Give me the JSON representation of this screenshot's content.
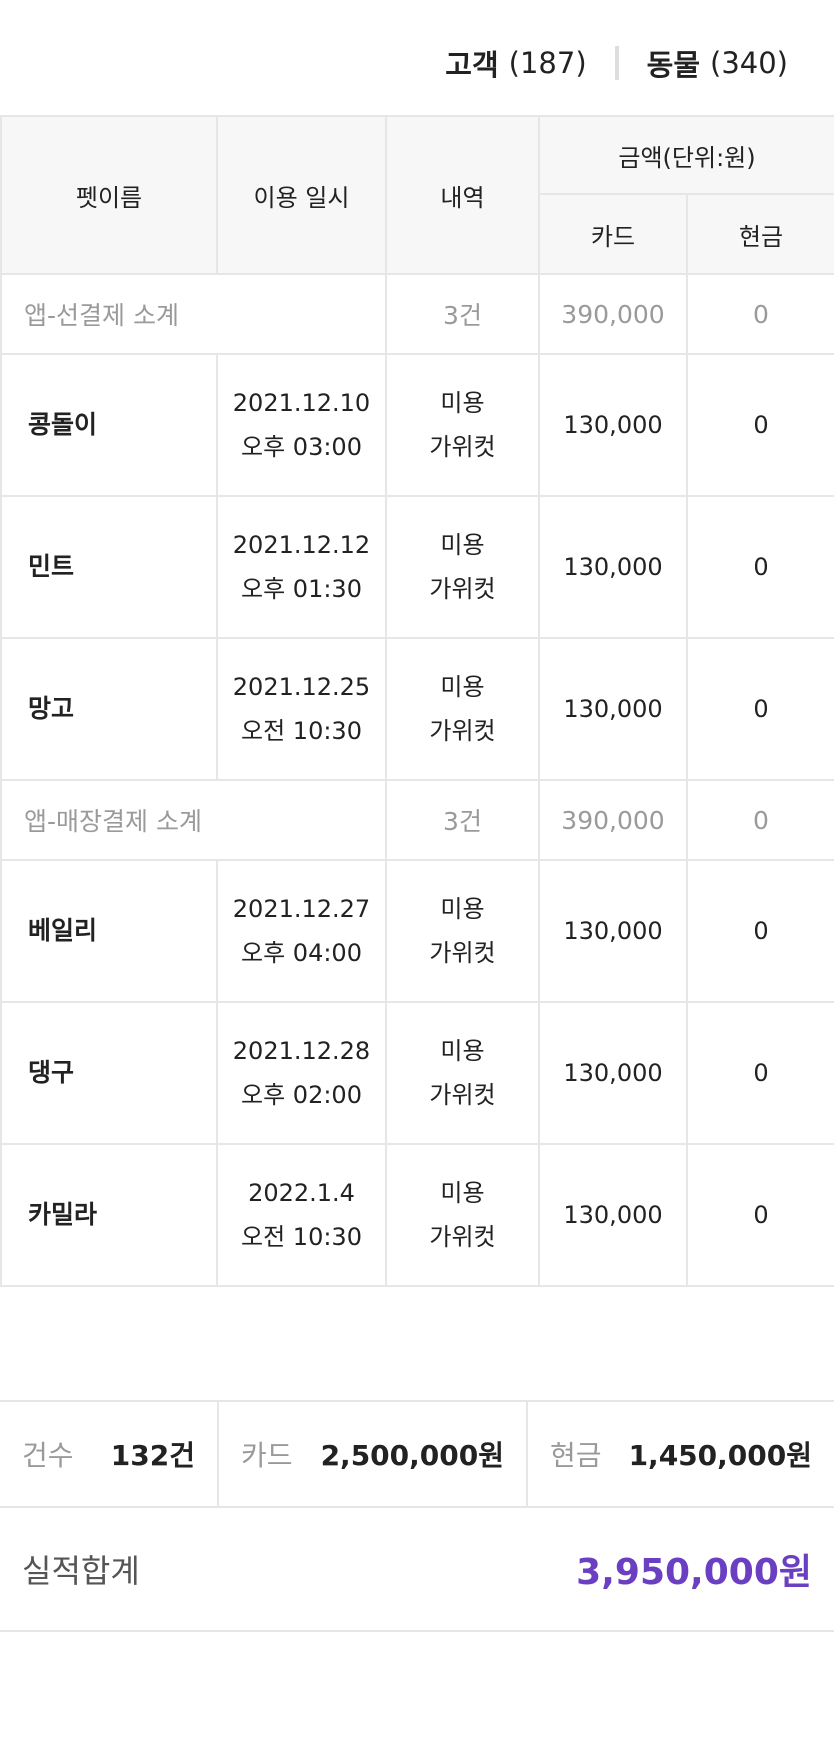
{
  "counts": {
    "customer_label": "고객",
    "customer_count": "(187)",
    "animal_label": "동물",
    "animal_count": "(340)"
  },
  "table": {
    "headers": {
      "pet_name": "펫이름",
      "date": "이용 일시",
      "detail": "내역",
      "amount": "금액(단위:원)",
      "card": "카드",
      "cash": "현금"
    },
    "groups": [
      {
        "label": "앱-선결제 소계",
        "count": "3건",
        "card": "390,000",
        "cash": "0",
        "rows": [
          {
            "pet": "콩돌이",
            "date": "2021.12.10",
            "time": "오후 03:00",
            "detail1": "미용",
            "detail2": "가위컷",
            "card": "130,000",
            "cash": "0"
          },
          {
            "pet": "민트",
            "date": "2021.12.12",
            "time": "오후 01:30",
            "detail1": "미용",
            "detail2": "가위컷",
            "card": "130,000",
            "cash": "0"
          },
          {
            "pet": "망고",
            "date": "2021.12.25",
            "time": "오전 10:30",
            "detail1": "미용",
            "detail2": "가위컷",
            "card": "130,000",
            "cash": "0"
          }
        ]
      },
      {
        "label": "앱-매장결제 소계",
        "count": "3건",
        "card": "390,000",
        "cash": "0",
        "rows": [
          {
            "pet": "베일리",
            "date": "2021.12.27",
            "time": "오후 04:00",
            "detail1": "미용",
            "detail2": "가위컷",
            "card": "130,000",
            "cash": "0"
          },
          {
            "pet": "댕구",
            "date": "2021.12.28",
            "time": "오후 02:00",
            "detail1": "미용",
            "detail2": "가위컷",
            "card": "130,000",
            "cash": "0"
          },
          {
            "pet": "카밀라",
            "date": "2022.1.4",
            "time": "오전 10:30",
            "detail1": "미용",
            "detail2": "가위컷",
            "card": "130,000",
            "cash": "0"
          }
        ]
      }
    ]
  },
  "summary": {
    "count_label": "건수",
    "count_value": "132건",
    "card_label": "카드",
    "card_value": "2,500,000원",
    "cash_label": "현금",
    "cash_value": "1,450,000원",
    "total_label": "실적합계",
    "total_value": "3,950,000원",
    "total_color": "#6a3fc2"
  }
}
